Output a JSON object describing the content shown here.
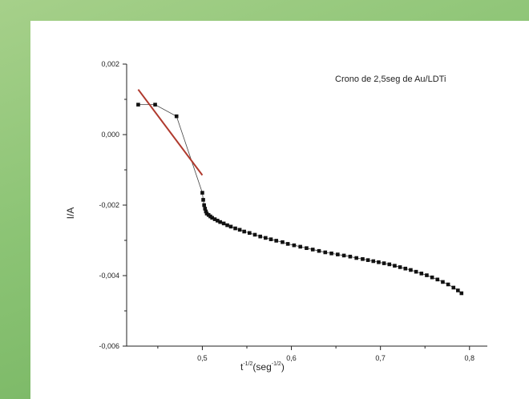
{
  "chart_data": {
    "type": "scatter",
    "title": "Crono de 2,5seg de Au/LDTi",
    "xlabel_base": "t",
    "xlabel_sup1": "-1/2",
    "xlabel_mid": "(seg",
    "xlabel_sup2": "-1/2",
    "xlabel_end": ")",
    "ylabel": "I/A",
    "xlim": [
      0.415,
      0.82
    ],
    "ylim": [
      -0.006,
      0.002
    ],
    "xticks": [
      0.5,
      0.6,
      0.7,
      0.8
    ],
    "xtick_labels": [
      "0,5",
      "0,6",
      "0,7",
      "0,8"
    ],
    "yticks": [
      0.002,
      0.0,
      -0.002,
      -0.004,
      -0.006
    ],
    "ytick_labels": [
      "0,002",
      "0,000",
      "-0,002",
      "-0,004",
      "-0,006"
    ],
    "grid": false,
    "series": [
      {
        "marker": "square",
        "color": "#111111",
        "x": [
          0.428,
          0.447,
          0.471,
          0.5,
          0.501,
          0.502,
          0.503,
          0.504,
          0.505,
          0.507,
          0.509,
          0.511,
          0.514,
          0.517,
          0.52,
          0.524,
          0.528,
          0.532,
          0.537,
          0.542,
          0.547,
          0.553,
          0.559,
          0.565,
          0.571,
          0.577,
          0.583,
          0.59,
          0.596,
          0.603,
          0.61,
          0.617,
          0.624,
          0.631,
          0.638,
          0.645,
          0.652,
          0.659,
          0.666,
          0.673,
          0.68,
          0.686,
          0.692,
          0.698,
          0.704,
          0.71,
          0.716,
          0.722,
          0.728,
          0.734,
          0.74,
          0.746,
          0.752,
          0.758,
          0.764,
          0.77,
          0.776,
          0.782,
          0.787,
          0.791
        ],
        "y": [
          0.00085,
          0.00085,
          0.00052,
          -0.00165,
          -0.00185,
          -0.002,
          -0.0021,
          -0.00218,
          -0.00224,
          -0.00228,
          -0.00232,
          -0.00236,
          -0.0024,
          -0.00244,
          -0.00248,
          -0.00252,
          -0.00257,
          -0.00261,
          -0.00266,
          -0.0027,
          -0.00275,
          -0.00279,
          -0.00284,
          -0.00289,
          -0.00293,
          -0.00297,
          -0.00301,
          -0.00305,
          -0.0031,
          -0.00314,
          -0.00318,
          -0.00322,
          -0.00326,
          -0.0033,
          -0.00334,
          -0.00337,
          -0.0034,
          -0.00343,
          -0.00346,
          -0.0035,
          -0.00353,
          -0.00356,
          -0.00359,
          -0.00362,
          -0.00365,
          -0.00368,
          -0.00372,
          -0.00376,
          -0.0038,
          -0.00384,
          -0.00389,
          -0.00394,
          -0.00399,
          -0.00405,
          -0.00411,
          -0.00418,
          -0.00425,
          -0.00434,
          -0.00442,
          -0.0045
        ]
      },
      {
        "marker": "line",
        "color": "#b03a2e",
        "x": [
          0.428,
          0.5
        ],
        "y": [
          0.00128,
          -0.00115
        ]
      }
    ]
  }
}
